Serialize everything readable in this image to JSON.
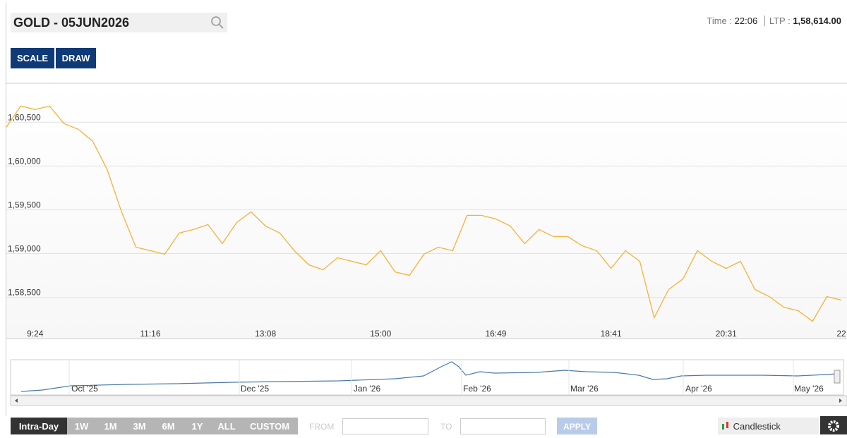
{
  "header": {
    "symbol": "GOLD - 05JUN2026",
    "time_label": "Time :",
    "time": "22:06",
    "ltp_label": "LTP :",
    "ltp": "1,58,614.00"
  },
  "tools": [
    "SCALE",
    "DRAW"
  ],
  "chart_data": {
    "type": "line",
    "color": "#f4b23a",
    "grid": true,
    "categories": [
      null,
      null,
      "9:24",
      null,
      null,
      null,
      null,
      null,
      null,
      null,
      "11:16",
      null,
      null,
      null,
      null,
      null,
      null,
      null,
      "13:08",
      null,
      null,
      null,
      null,
      null,
      null,
      null,
      "15:00",
      null,
      null,
      null,
      null,
      null,
      null,
      null,
      "16:49",
      null,
      null,
      null,
      null,
      null,
      null,
      null,
      "18:41",
      null,
      null,
      null,
      null,
      null,
      null,
      null,
      "20:31",
      null,
      null,
      null,
      null,
      null,
      null,
      null,
      "22"
    ],
    "values": [
      160444,
      160685,
      160645,
      160685,
      160484,
      160419,
      160282,
      159960,
      159476,
      159073,
      159033,
      158993,
      159235,
      159275,
      159331,
      159114,
      159355,
      159476,
      159315,
      159235,
      159033,
      158872,
      158815,
      158953,
      158912,
      158872,
      159033,
      158791,
      158751,
      158993,
      159073,
      159033,
      159436,
      159436,
      159396,
      159315,
      159114,
      159275,
      159194,
      159194,
      159090,
      159033,
      158831,
      159033,
      158912,
      158267,
      158590,
      158711,
      159033,
      158912,
      158831,
      158912,
      158590,
      158509,
      158388,
      158348,
      158227,
      158509,
      158469
    ],
    "ylim": [
      158030,
      160945
    ],
    "yticks": [
      {
        "value": 158500,
        "label": "1,58,500"
      },
      {
        "value": 159000,
        "label": "1,59,000"
      },
      {
        "value": 159500,
        "label": "1,59,500"
      },
      {
        "value": 160000,
        "label": "1,60,000"
      },
      {
        "value": 160500,
        "label": "1,60,500"
      }
    ]
  },
  "navigator": {
    "labels": [
      "Oct '25",
      "Dec '25",
      "Jan '26",
      "Feb '26",
      "Mar '26",
      "Apr '26",
      "May '26"
    ]
  },
  "toolbar": {
    "ranges": [
      "Intra-Day",
      "1W",
      "1M",
      "3M",
      "6M",
      "1Y",
      "ALL",
      "CUSTOM"
    ],
    "from": "FROM",
    "to": "TO",
    "apply": "APPLY",
    "chart_type": "Candlestick"
  }
}
